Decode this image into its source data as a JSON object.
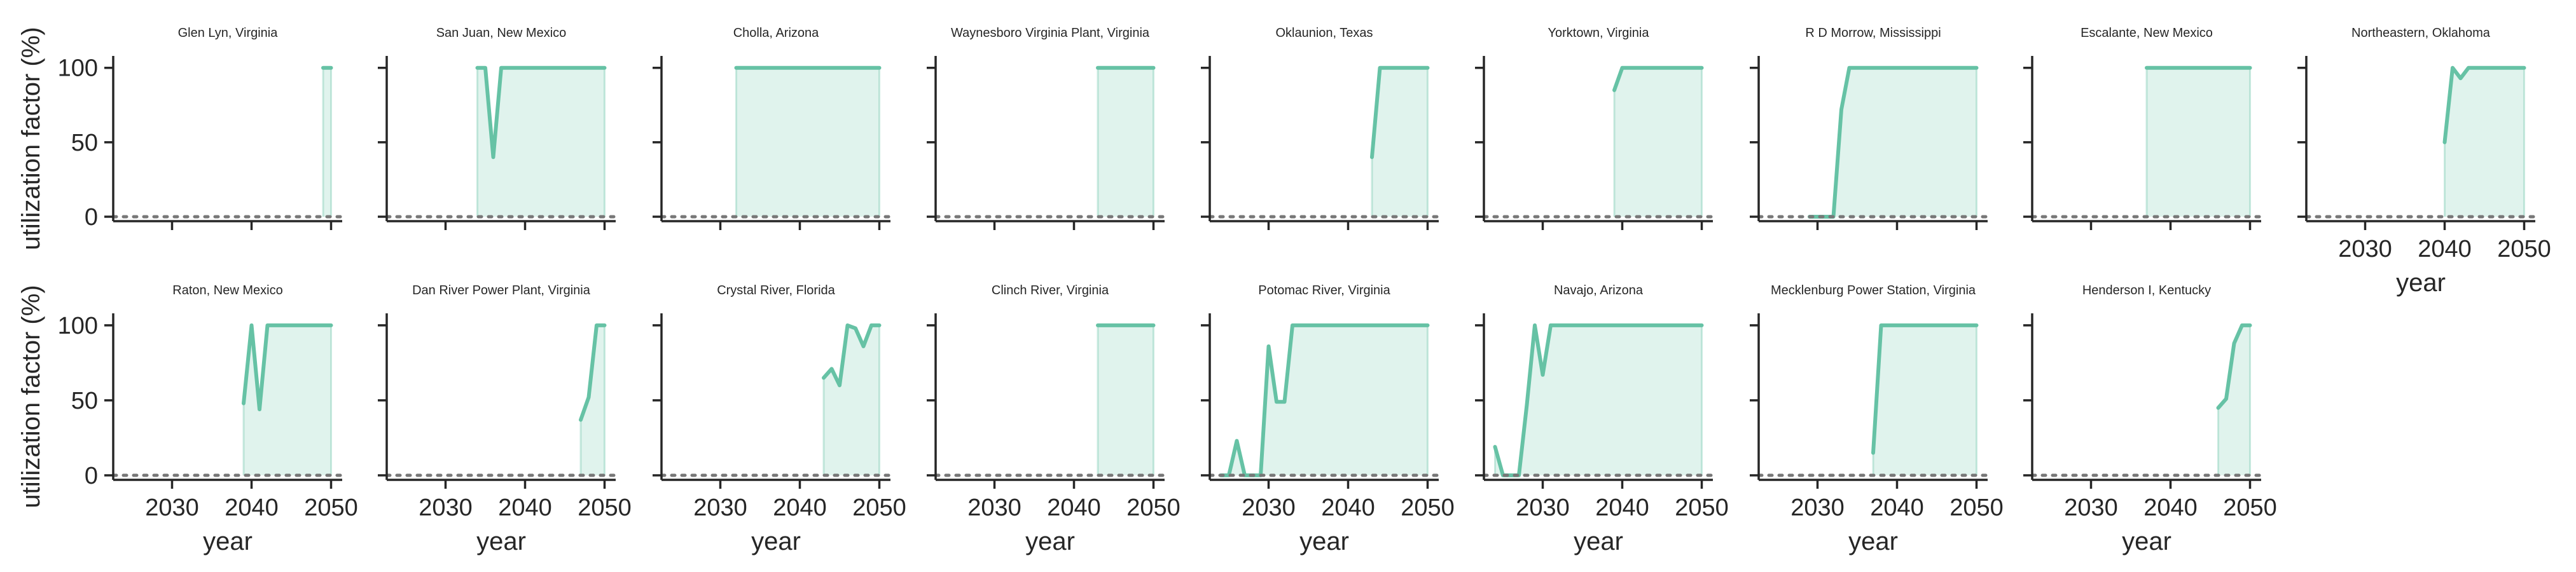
{
  "chart_data": {
    "type": "line",
    "xlabel": "year",
    "ylabel": "utilization factor (%)",
    "xlim": [
      2023,
      2051
    ],
    "ylim": [
      -3,
      108
    ],
    "x_ticks": [
      2030,
      2040,
      2050
    ],
    "y_ticks": [
      0,
      50,
      100
    ],
    "grid": false,
    "reference_line": 0,
    "colors": {
      "line": "#66c2a5",
      "fill": "#66c2a5",
      "reference": "#777777",
      "axes": "#262626"
    },
    "panels": [
      {
        "title": "Glen Lyn, Virginia",
        "x": [
          2049,
          2050
        ],
        "y": [
          100,
          100
        ]
      },
      {
        "title": "San Juan, New Mexico",
        "x": [
          2034,
          2035,
          2036,
          2037,
          2040,
          2045,
          2050
        ],
        "y": [
          100,
          100,
          40,
          100,
          100,
          100,
          100
        ]
      },
      {
        "title": "Cholla, Arizona",
        "x": [
          2032,
          2040,
          2050
        ],
        "y": [
          100,
          100,
          100
        ]
      },
      {
        "title": "Waynesboro Virginia Plant, Virginia",
        "x": [
          2043,
          2050
        ],
        "y": [
          100,
          100
        ]
      },
      {
        "title": "Oklaunion, Texas",
        "x": [
          2043,
          2044,
          2045,
          2050
        ],
        "y": [
          40,
          100,
          100,
          100
        ]
      },
      {
        "title": "Yorktown, Virginia",
        "x": [
          2039,
          2040,
          2045,
          2050
        ],
        "y": [
          85,
          100,
          100,
          100
        ]
      },
      {
        "title": "R D Morrow, Mississippi",
        "x": [
          2029,
          2030,
          2031,
          2032,
          2033,
          2034,
          2040,
          2050
        ],
        "y": [
          0,
          0,
          0,
          0,
          72,
          100,
          100,
          100
        ]
      },
      {
        "title": "Escalante, New Mexico",
        "x": [
          2037,
          2040,
          2050
        ],
        "y": [
          100,
          100,
          100
        ]
      },
      {
        "title": "Northeastern, Oklahoma",
        "x": [
          2040,
          2041,
          2042,
          2043,
          2045,
          2050
        ],
        "y": [
          50,
          100,
          93,
          100,
          100,
          100
        ]
      },
      {
        "title": "Raton, New Mexico",
        "x": [
          2039,
          2040,
          2041,
          2042,
          2045,
          2050
        ],
        "y": [
          48,
          100,
          44,
          100,
          100,
          100
        ]
      },
      {
        "title": "Dan River Power Plant, Virginia",
        "x": [
          2047,
          2048,
          2049,
          2050
        ],
        "y": [
          37,
          52,
          100,
          100
        ]
      },
      {
        "title": "Crystal River, Florida",
        "x": [
          2043,
          2044,
          2045,
          2046,
          2047,
          2048,
          2049,
          2050
        ],
        "y": [
          65,
          71,
          60,
          100,
          98,
          86,
          100,
          100
        ]
      },
      {
        "title": "Clinch River, Virginia",
        "x": [
          2043,
          2050
        ],
        "y": [
          100,
          100
        ]
      },
      {
        "title": "Potomac River, Virginia",
        "x": [
          2024,
          2025,
          2026,
          2027,
          2028,
          2029,
          2030,
          2031,
          2032,
          2033,
          2034,
          2040,
          2050
        ],
        "y": [
          0,
          0,
          23,
          0,
          0,
          0,
          86,
          49,
          49,
          100,
          100,
          100,
          100
        ]
      },
      {
        "title": "Navajo, Arizona",
        "x": [
          2024,
          2025,
          2026,
          2027,
          2028,
          2029,
          2030,
          2031,
          2032,
          2040,
          2050
        ],
        "y": [
          19,
          0,
          0,
          0,
          47,
          100,
          67,
          100,
          100,
          100,
          100
        ]
      },
      {
        "title": "Mecklenburg Power Station, Virginia",
        "x": [
          2037,
          2038,
          2040,
          2050
        ],
        "y": [
          15,
          100,
          100,
          100
        ]
      },
      {
        "title": "Henderson I, Kentucky",
        "x": [
          2046,
          2047,
          2048,
          2049,
          2050
        ],
        "y": [
          45,
          51,
          88,
          100,
          100
        ]
      }
    ]
  }
}
